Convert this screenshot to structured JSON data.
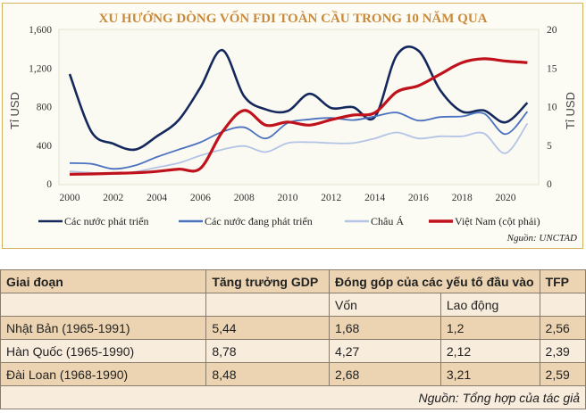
{
  "chart_data": {
    "type": "line",
    "title": "XU HƯỚNG DÒNG VỐN FDI TOÀN CẦU TRONG 10 NĂM QUA",
    "ylabel": "Tỉ USD",
    "y2label": "Tỉ USD",
    "x": [
      2000,
      2001,
      2002,
      2003,
      2004,
      2005,
      2006,
      2007,
      2008,
      2009,
      2010,
      2011,
      2012,
      2013,
      2014,
      2015,
      2016,
      2017,
      2018,
      2019,
      2020,
      2021
    ],
    "xticks": [
      "2000",
      "2002",
      "2004",
      "2006",
      "2008",
      "2010",
      "2012",
      "2014",
      "2016",
      "2018",
      "2020"
    ],
    "ylim": [
      0,
      1600
    ],
    "yticks": [
      "0",
      "400",
      "800",
      "1,200",
      "1,600"
    ],
    "y2lim": [
      0,
      20
    ],
    "y2ticks": [
      "0",
      "5",
      "10",
      "15",
      "20"
    ],
    "grid": false,
    "legend": "bottom",
    "series": [
      {
        "name": "Các nước phát triển",
        "axis": "left",
        "color": "#14285e",
        "values": [
          1138,
          538,
          415,
          354,
          492,
          660,
          1000,
          1385,
          908,
          770,
          754,
          932,
          785,
          794,
          692,
          1330,
          1380,
          970,
          748,
          760,
          637,
          840
        ]
      },
      {
        "name": "Các nước đang phát triển",
        "axis": "left",
        "color": "#4a72bf",
        "values": [
          215,
          206,
          154,
          190,
          277,
          354,
          430,
          538,
          585,
          470,
          630,
          668,
          683,
          660,
          698,
          738,
          655,
          692,
          698,
          729,
          514,
          748
        ]
      },
      {
        "name": "Châu Á",
        "axis": "left",
        "color": "#b4c4e6",
        "values": [
          129,
          114,
          102,
          123,
          169,
          215,
          292,
          354,
          391,
          329,
          422,
          431,
          422,
          422,
          470,
          532,
          470,
          492,
          492,
          523,
          317,
          625
        ]
      },
      {
        "name": "Việt Nam (cột phải)",
        "axis": "right",
        "color": "#c0121c",
        "values": [
          1.23,
          1.27,
          1.35,
          1.42,
          1.6,
          1.9,
          2.0,
          6.7,
          9.5,
          7.6,
          8.0,
          7.6,
          8.3,
          8.9,
          9.2,
          11.9,
          12.7,
          14.2,
          15.7,
          16.2,
          15.9,
          15.7
        ]
      }
    ],
    "source": "Nguồn: UNCTAD"
  },
  "table": {
    "headers": [
      "Giai đoạn",
      "Tăng trưởng GDP",
      "Đóng góp của các yếu tố đầu vào",
      "TFP"
    ],
    "subheaders": [
      "",
      "",
      "Vốn",
      "Lao động",
      ""
    ],
    "rows": [
      [
        "Nhật Bản (1965-1991)",
        "5,44",
        "1,68",
        "1,2",
        "2,56"
      ],
      [
        "Hàn Quốc (1965-1990)",
        "8,78",
        "4,27",
        "2,12",
        "2,39"
      ],
      [
        "Đài Loan (1968-1990)",
        "8,48",
        "2,68",
        "3,21",
        "2,59"
      ]
    ],
    "source": "Nguồn: Tổng hợp của tác giả"
  }
}
